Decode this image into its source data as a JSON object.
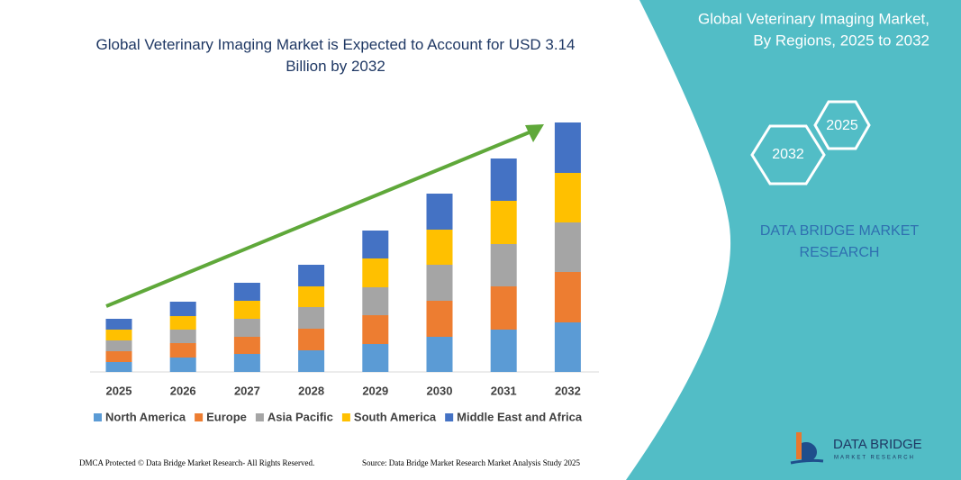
{
  "chart_data": {
    "type": "bar",
    "stacked": true,
    "title": "Global Veterinary Imaging Market is Expected to Account for USD 3.14 Billion by 2032",
    "categories": [
      "2025",
      "2026",
      "2027",
      "2028",
      "2029",
      "2030",
      "2031",
      "2032"
    ],
    "series": [
      {
        "name": "North America",
        "color": "#5b9bd5",
        "values": [
          11,
          16,
          20,
          24,
          31,
          39,
          47,
          55
        ]
      },
      {
        "name": "Europe",
        "color": "#ed7d31",
        "values": [
          12,
          16,
          19,
          24,
          32,
          40,
          48,
          56
        ]
      },
      {
        "name": "Asia Pacific",
        "color": "#a5a5a5",
        "values": [
          12,
          15,
          20,
          24,
          31,
          40,
          47,
          55
        ]
      },
      {
        "name": "South America",
        "color": "#ffc000",
        "values": [
          12,
          15,
          20,
          23,
          32,
          39,
          48,
          55
        ]
      },
      {
        "name": "Middle East and Africa",
        "color": "#4472c4",
        "values": [
          12,
          16,
          20,
          24,
          31,
          40,
          47,
          56
        ]
      }
    ]
  },
  "panel": {
    "title_lines": [
      "Global Veterinary Imaging Market,",
      "By Regions, 2025 to 2032"
    ],
    "hexagons": [
      "2025",
      "2032"
    ],
    "brand_lines": [
      "DATA BRIDGE MARKET",
      "RESEARCH"
    ]
  },
  "logo": {
    "name": "DATA BRIDGE",
    "tagline": "MARKET RESEARCH"
  },
  "footer": {
    "left": "DMCA Protected © Data Bridge Market Research- All Rights Reserved.",
    "right": "Source: Data Bridge Market Research Market Analysis Study 2025"
  }
}
